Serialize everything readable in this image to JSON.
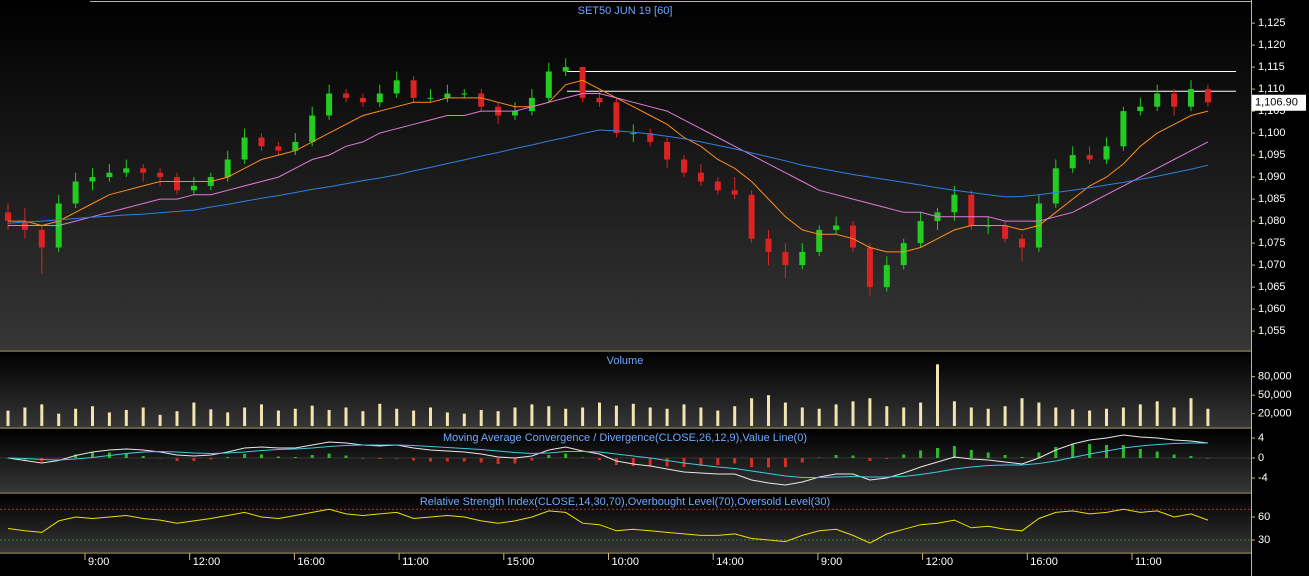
{
  "chart_data": [
    {
      "type": "candlestick",
      "title": "SET50 JUN 19   [60]",
      "open": [
        1082,
        1080,
        1078,
        1074,
        1084,
        1089,
        1090,
        1091,
        1092,
        1091,
        1090,
        1087,
        1088,
        1090,
        1094,
        1099,
        1097,
        1096,
        1098,
        1104,
        1109,
        1108,
        1107,
        1109,
        1112,
        1108,
        1108,
        1109,
        1109,
        1106,
        1104,
        1105,
        1108,
        1114,
        1115,
        1108,
        1107,
        1100,
        1100,
        1098,
        1094,
        1091,
        1089,
        1087,
        1086,
        1076,
        1073,
        1070,
        1073,
        1078,
        1079,
        1074,
        1065,
        1070,
        1075,
        1080,
        1082,
        1086,
        1079,
        1079,
        1076,
        1074,
        1084,
        1092,
        1095,
        1094,
        1097,
        1105,
        1106,
        1109,
        1106,
        1110
      ],
      "high": [
        1084,
        1083,
        1079,
        1086,
        1091,
        1092,
        1093,
        1094,
        1093,
        1092,
        1091,
        1090,
        1091,
        1096,
        1101,
        1100,
        1098,
        1100,
        1106,
        1111,
        1110,
        1109,
        1111,
        1114,
        1113,
        1110,
        1111,
        1110,
        1110,
        1107,
        1107,
        1110,
        1116,
        1117,
        1115,
        1110,
        1108,
        1102,
        1101,
        1099,
        1095,
        1093,
        1090,
        1090,
        1087,
        1078,
        1075,
        1075,
        1079,
        1081,
        1080,
        1075,
        1072,
        1076,
        1082,
        1083,
        1088,
        1087,
        1081,
        1080,
        1077,
        1086,
        1094,
        1097,
        1097,
        1099,
        1106,
        1108,
        1111,
        1110,
        1112,
        1111
      ],
      "low": [
        1078,
        1076,
        1068,
        1073,
        1083,
        1087,
        1089,
        1090,
        1089,
        1088,
        1086,
        1086,
        1087,
        1089,
        1093,
        1096,
        1095,
        1095,
        1097,
        1103,
        1107,
        1106,
        1106,
        1108,
        1107,
        1107,
        1107,
        1108,
        1105,
        1102,
        1103,
        1104,
        1107,
        1113,
        1107,
        1106,
        1099,
        1098,
        1097,
        1092,
        1090,
        1088,
        1086,
        1085,
        1075,
        1070,
        1067,
        1069,
        1072,
        1077,
        1073,
        1063,
        1064,
        1069,
        1074,
        1078,
        1080,
        1078,
        1077,
        1075,
        1071,
        1073,
        1083,
        1091,
        1093,
        1093,
        1096,
        1104,
        1105,
        1104,
        1105,
        1106
      ],
      "close": [
        1080,
        1078,
        1074,
        1084,
        1089,
        1090,
        1091,
        1092,
        1091,
        1090,
        1087,
        1088,
        1090,
        1094,
        1099,
        1097,
        1096,
        1098,
        1104,
        1109,
        1108,
        1107,
        1109,
        1112,
        1108,
        1108,
        1109,
        1109,
        1106,
        1104,
        1105,
        1108,
        1114,
        1115,
        1108,
        1107,
        1100,
        1100,
        1098,
        1094,
        1091,
        1089,
        1087,
        1086,
        1076,
        1073,
        1070,
        1073,
        1078,
        1079,
        1074,
        1065,
        1070,
        1075,
        1080,
        1082,
        1086,
        1079,
        1079,
        1076,
        1074,
        1084,
        1092,
        1095,
        1094,
        1097,
        1105,
        1106,
        1109,
        1106,
        1110,
        1107
      ],
      "up_color": "#22cc22",
      "down_color": "#dd2222",
      "series": [
        {
          "color": "#ff8c1a",
          "values": [
            1080,
            1080,
            1079,
            1080,
            1082,
            1084,
            1086,
            1087,
            1088,
            1089,
            1089,
            1089,
            1089,
            1090,
            1092,
            1094,
            1095,
            1096,
            1098,
            1100,
            1102,
            1104,
            1105,
            1106,
            1107,
            1107,
            1108,
            1108,
            1108,
            1107,
            1106,
            1106,
            1107,
            1111,
            1112,
            1110,
            1108,
            1106,
            1104,
            1102,
            1099,
            1097,
            1094,
            1092,
            1089,
            1085,
            1081,
            1078,
            1077,
            1077,
            1076,
            1074,
            1073,
            1073,
            1074,
            1076,
            1078,
            1079,
            1079,
            1079,
            1078,
            1079,
            1082,
            1085,
            1088,
            1090,
            1093,
            1097,
            1100,
            1102,
            1104,
            1105
          ]
        },
        {
          "color": "#e07ad8",
          "values": [
            1079,
            1079,
            1079,
            1079,
            1080,
            1081,
            1082,
            1083,
            1084,
            1085,
            1085,
            1086,
            1086,
            1087,
            1088,
            1089,
            1090,
            1092,
            1094,
            1095,
            1097,
            1098,
            1100,
            1101,
            1102,
            1103,
            1104,
            1104,
            1105,
            1105,
            1105,
            1106,
            1107,
            1108,
            1109,
            1109,
            1108,
            1107,
            1106,
            1105,
            1103,
            1101,
            1099,
            1097,
            1095,
            1093,
            1091,
            1089,
            1087,
            1086,
            1085,
            1084,
            1083,
            1082,
            1082,
            1081,
            1081,
            1081,
            1081,
            1080,
            1080,
            1080,
            1081,
            1082,
            1084,
            1086,
            1088,
            1090,
            1092,
            1094,
            1096,
            1098
          ]
        },
        {
          "color": "#2f7fe0",
          "values": [
            1079.5,
            1079.8,
            1080,
            1080.3,
            1080.6,
            1080.9,
            1081.1,
            1081.4,
            1081.6,
            1081.9,
            1082.2,
            1082.5,
            1083.2,
            1083.8,
            1084.5,
            1085.2,
            1085.8,
            1086.5,
            1087.2,
            1087.8,
            1088.5,
            1089.2,
            1089.8,
            1090.5,
            1091.4,
            1092.2,
            1093.1,
            1093.9,
            1094.8,
            1095.6,
            1096.5,
            1097.3,
            1098.2,
            1099,
            1099.9,
            1100.7,
            1100.5,
            1100.2,
            1099.8,
            1099.3,
            1098.7,
            1098,
            1097.2,
            1096.4,
            1095.5,
            1094.6,
            1093.7,
            1092.7,
            1092,
            1091.3,
            1090.6,
            1090,
            1089.4,
            1088.8,
            1088.2,
            1087.6,
            1087,
            1086.5,
            1086,
            1085.5,
            1085.6,
            1086,
            1086.5,
            1087,
            1087.6,
            1088.2,
            1088.8,
            1089.5,
            1090.2,
            1091,
            1091.8,
            1092.7
          ]
        }
      ],
      "levels": [
        {
          "value": 1114,
          "color": "#ffffff"
        },
        {
          "value": 1109.5,
          "color": "#ffffff"
        }
      ],
      "last_price": {
        "value": 1106.9,
        "label": "1,106.90"
      },
      "ylim": [
        1050.7,
        1129.8
      ],
      "yticks": [
        {
          "value": 1055,
          "label": "1,055"
        },
        {
          "value": 1060,
          "label": "1,060"
        },
        {
          "value": 1065,
          "label": "1,065"
        },
        {
          "value": 1070,
          "label": "1,070"
        },
        {
          "value": 1075,
          "label": "1,075"
        },
        {
          "value": 1080,
          "label": "1,080"
        },
        {
          "value": 1085,
          "label": "1,085"
        },
        {
          "value": 1090,
          "label": "1,090"
        },
        {
          "value": 1095,
          "label": "1,095"
        },
        {
          "value": 1100,
          "label": "1,100"
        },
        {
          "value": 1105,
          "label": "1,105"
        },
        {
          "value": 1110,
          "label": "1,110"
        },
        {
          "value": 1115,
          "label": "1,115"
        },
        {
          "value": 1120,
          "label": "1,120"
        },
        {
          "value": 1125,
          "label": "1,125"
        }
      ]
    },
    {
      "type": "bar",
      "title": "Volume",
      "color": "#f0e6b0",
      "values": [
        25000,
        30000,
        35000,
        20000,
        28000,
        32000,
        22000,
        26000,
        30000,
        18000,
        24000,
        38000,
        27000,
        22000,
        30000,
        35000,
        25000,
        28000,
        33000,
        26000,
        30000,
        24000,
        36000,
        28000,
        25000,
        30000,
        22000,
        20000,
        26000,
        24000,
        30000,
        35000,
        32000,
        28000,
        30000,
        38000,
        33000,
        36000,
        30000,
        28000,
        35000,
        30000,
        25000,
        32000,
        45000,
        50000,
        38000,
        30000,
        28000,
        35000,
        40000,
        45000,
        32000,
        30000,
        38000,
        100000,
        40000,
        30000,
        28000,
        32000,
        45000,
        38000,
        30000,
        27000,
        25000,
        28000,
        30000,
        35000,
        40000,
        30000,
        45000,
        28000
      ],
      "ylim": [
        0,
        120000
      ],
      "yticks": [
        {
          "value": 20000,
          "label": "20,000"
        },
        {
          "value": 50000,
          "label": "50,000"
        },
        {
          "value": 80000,
          "label": "80,000"
        }
      ]
    },
    {
      "type": "macd",
      "title": "Moving Average Convergence / Divergence(CLOSE,26,12,9),Value Line(0)",
      "series": [
        {
          "color": "#e8e8e8",
          "values": [
            0,
            -0.5,
            -1,
            -0.5,
            0.5,
            1.2,
            1.6,
            1.8,
            1.6,
            1.2,
            0.6,
            0.4,
            0.6,
            1.2,
            2,
            2.2,
            2,
            2,
            2.6,
            3.2,
            3,
            2.6,
            2.4,
            2.6,
            2,
            1.6,
            1.4,
            1.2,
            0.8,
            0.2,
            0,
            0.4,
            1.6,
            2.2,
            1.4,
            0.8,
            -0.6,
            -1.2,
            -1.6,
            -2.2,
            -2.8,
            -3,
            -3.2,
            -3.2,
            -4.4,
            -5,
            -5.4,
            -4.8,
            -3.8,
            -3.2,
            -3.2,
            -4.4,
            -4,
            -3,
            -1.8,
            -0.8,
            0.2,
            -0.2,
            -0.4,
            -0.8,
            -1.2,
            0,
            1.6,
            2.8,
            3.6,
            4,
            4.6,
            4.2,
            4,
            3.6,
            3.4,
            3
          ]
        },
        {
          "color": "#40c8e0",
          "values": [
            0,
            -0.1,
            -0.3,
            -0.4,
            -0.2,
            0.1,
            0.5,
            0.9,
            1.2,
            1.3,
            1.2,
            1,
            0.9,
            1,
            1.2,
            1.5,
            1.7,
            1.8,
            2,
            2.3,
            2.5,
            2.6,
            2.6,
            2.6,
            2.5,
            2.3,
            2.1,
            1.9,
            1.7,
            1.4,
            1.1,
            0.9,
            1,
            1.3,
            1.3,
            1.2,
            0.8,
            0.4,
            0,
            -0.5,
            -1,
            -1.4,
            -1.8,
            -2.1,
            -2.6,
            -3.1,
            -3.6,
            -3.9,
            -3.9,
            -3.8,
            -3.7,
            -3.8,
            -3.8,
            -3.7,
            -3.3,
            -2.8,
            -2.2,
            -1.8,
            -1.5,
            -1.4,
            -1.4,
            -1.1,
            -0.6,
            0.1,
            0.8,
            1.4,
            2,
            2.4,
            2.7,
            2.9,
            3,
            3
          ]
        }
      ],
      "histogram": {
        "up_color": "#2db82d",
        "down_color": "#d03020",
        "values": [
          0,
          -0.4,
          -0.7,
          -0.1,
          0.7,
          1.1,
          1.1,
          0.9,
          0.4,
          -0.1,
          -0.6,
          -0.6,
          -0.3,
          0.2,
          0.8,
          0.7,
          0.3,
          0.2,
          0.6,
          0.9,
          0.5,
          0,
          -0.2,
          0,
          -0.5,
          -0.7,
          -0.7,
          -0.7,
          -0.9,
          -1.2,
          -1.1,
          -0.5,
          0.6,
          0.9,
          0.1,
          -0.4,
          -1.4,
          -1.6,
          -1.6,
          -1.7,
          -1.8,
          -1.6,
          -1.4,
          -1.1,
          -1.8,
          -1.9,
          -1.8,
          -0.9,
          0.1,
          0.6,
          0.5,
          -0.6,
          -0.2,
          0.7,
          1.5,
          2,
          2.4,
          1.6,
          1.1,
          0.6,
          0.2,
          1.1,
          2.2,
          2.7,
          2.8,
          2.6,
          2.6,
          1.8,
          1.3,
          0.7,
          0.4,
          0
        ]
      },
      "ylim": [
        -6.8,
        5.8
      ],
      "yticks": [
        4,
        0,
        -4
      ]
    },
    {
      "type": "line",
      "title": "Relative Strength Index(CLOSE,14,30,70),Overbought Level(70),Oversold Level(30)",
      "series": [
        {
          "color": "#e8e000",
          "values": [
            45,
            42,
            40,
            55,
            60,
            58,
            60,
            62,
            58,
            56,
            52,
            55,
            58,
            62,
            66,
            60,
            58,
            62,
            66,
            70,
            64,
            62,
            64,
            66,
            58,
            60,
            62,
            60,
            55,
            52,
            55,
            60,
            68,
            66,
            52,
            50,
            42,
            44,
            42,
            40,
            38,
            36,
            36,
            38,
            32,
            30,
            28,
            36,
            42,
            44,
            36,
            26,
            38,
            44,
            50,
            52,
            56,
            46,
            48,
            44,
            42,
            58,
            66,
            68,
            64,
            66,
            70,
            66,
            68,
            60,
            64,
            56
          ]
        }
      ],
      "levels": [
        {
          "value": 70,
          "color": "#b03030"
        },
        {
          "value": 30,
          "color": "#2e8b2e"
        }
      ],
      "ylim": [
        14.4,
        91.3
      ],
      "yticks": [
        60,
        30
      ],
      "time_labels": [
        "9:00",
        "12:00",
        "16:00",
        "11:00",
        "15:00",
        "10:00",
        "14:00",
        "9:00",
        "12:00",
        "16:00",
        "11:00"
      ]
    }
  ]
}
